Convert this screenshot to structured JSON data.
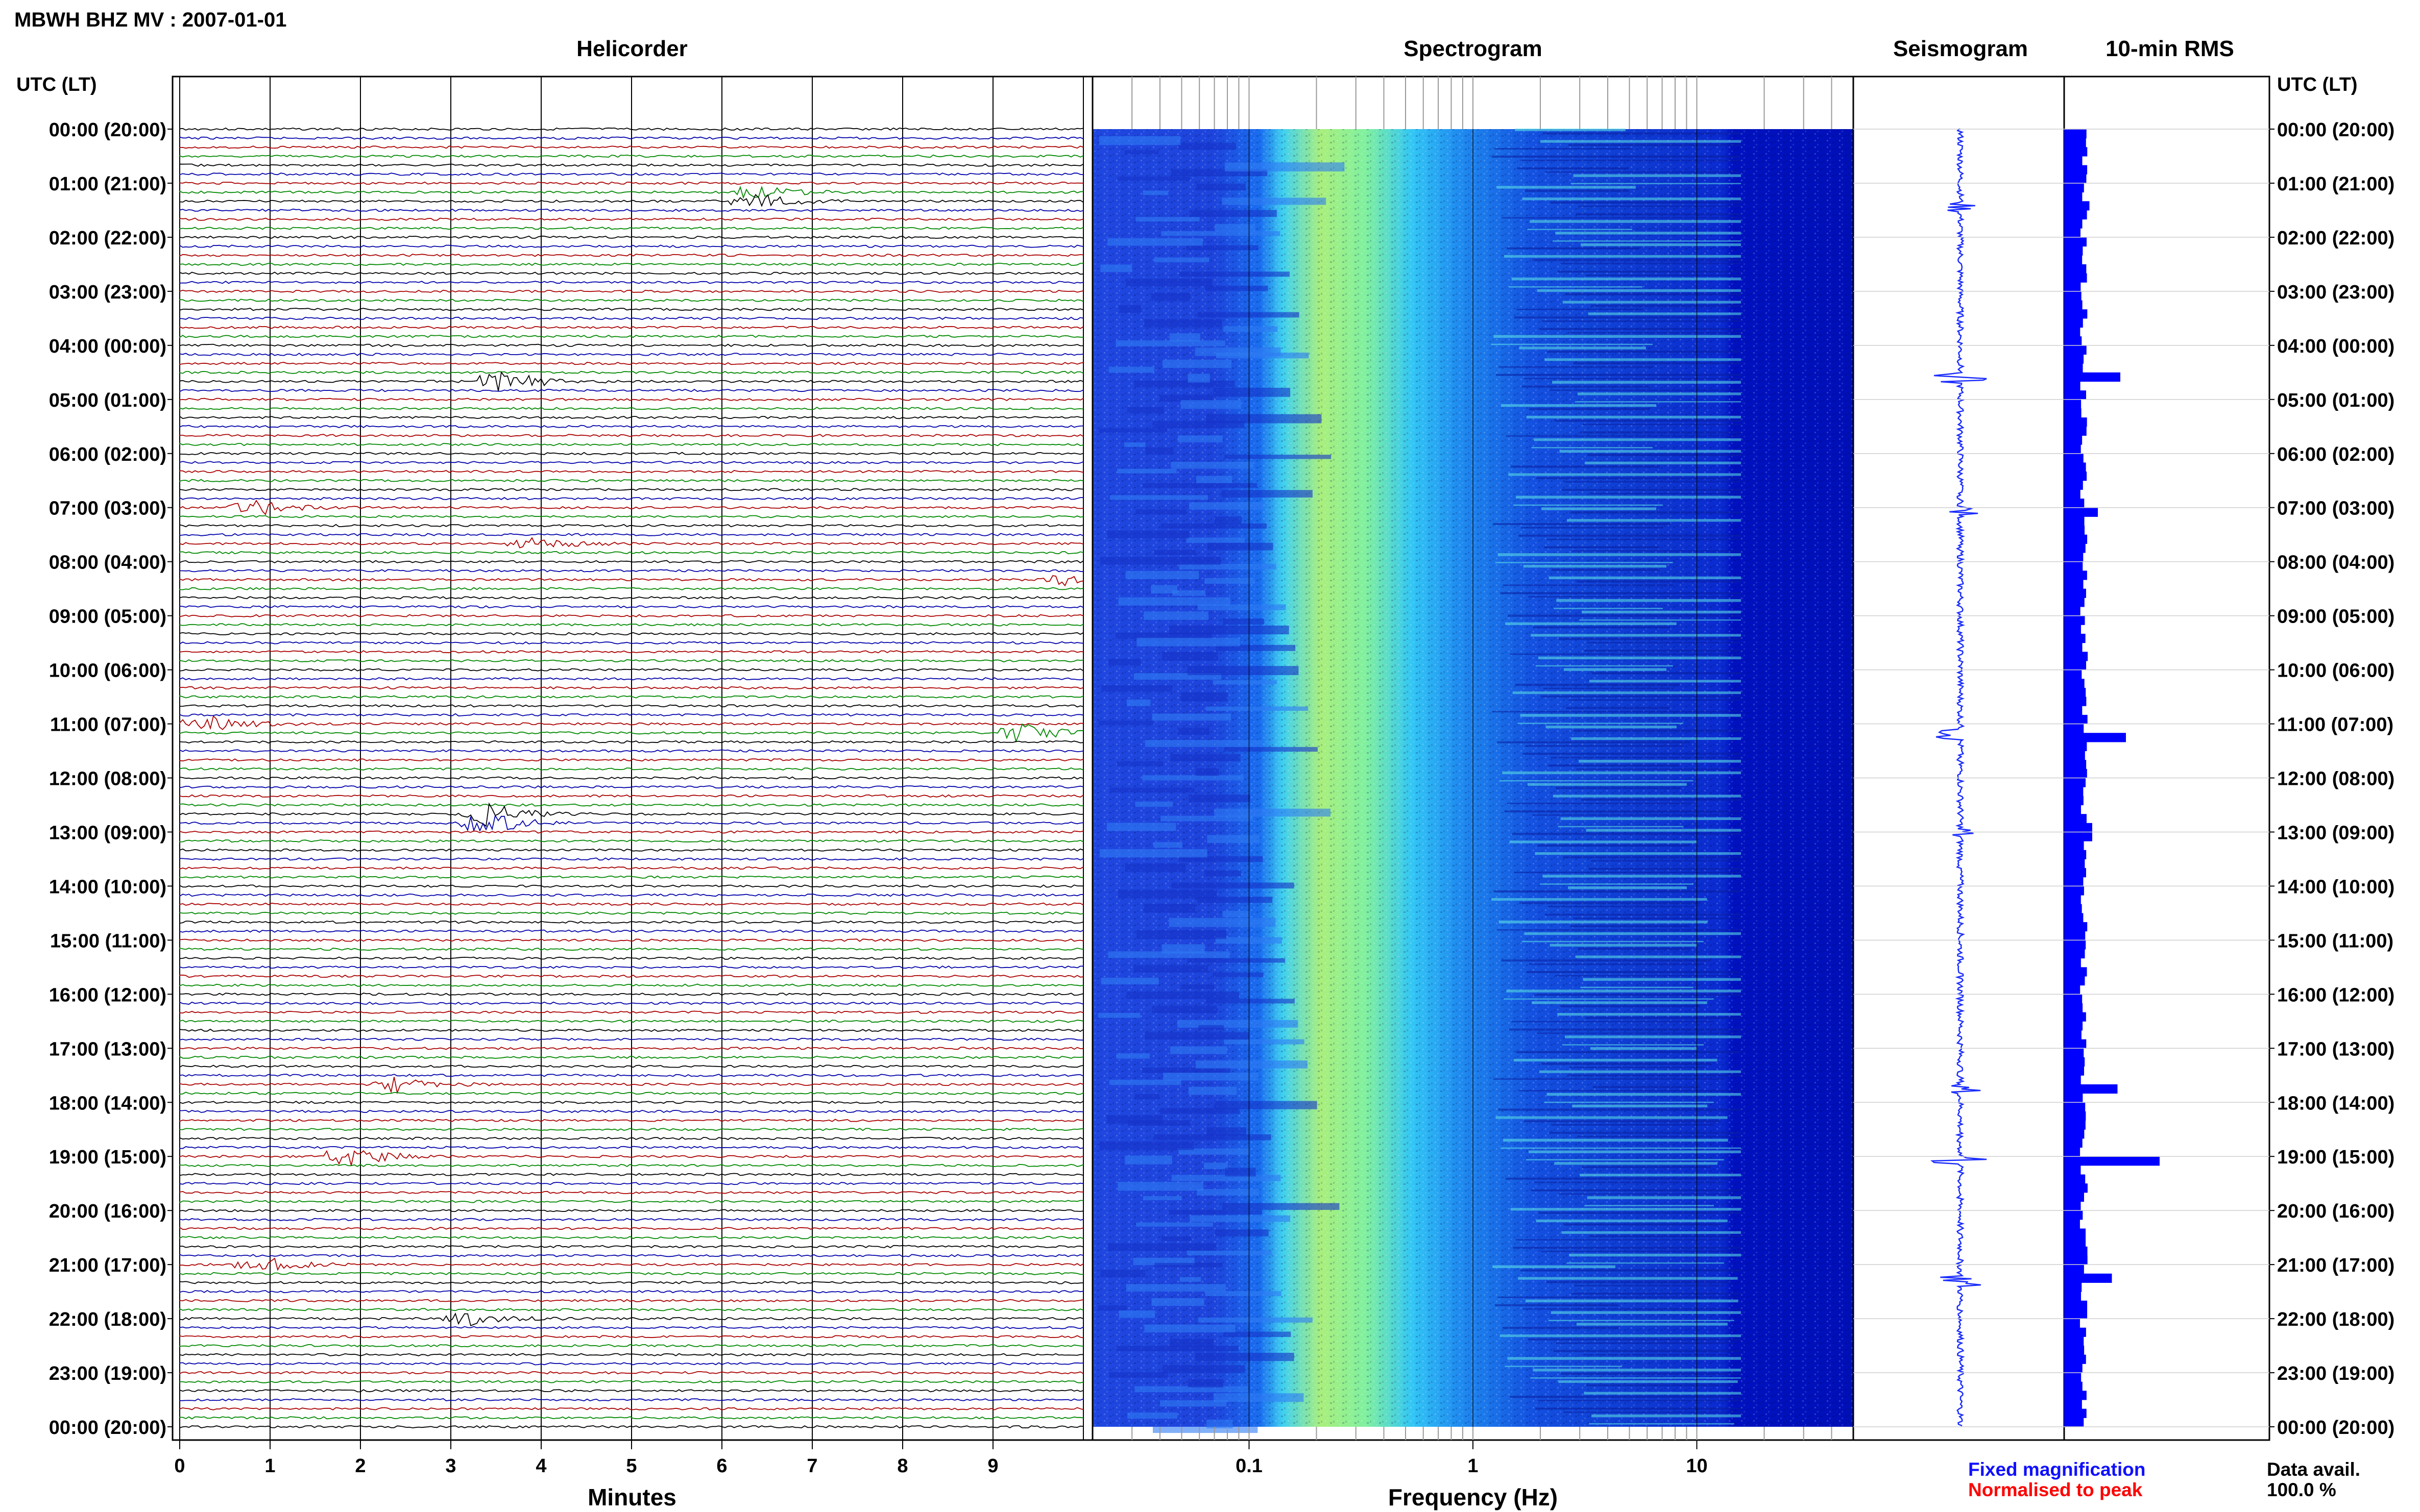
{
  "title": "MBWH BHZ MV : 2007-01-01",
  "panels": {
    "helicorder": "Helicorder",
    "spectrogram": "Spectrogram",
    "seismogram": "Seismogram",
    "rms": "10-min RMS"
  },
  "axis": {
    "time_header": "UTC (LT)",
    "minutes_label": "Minutes",
    "frequency_label": "Frequency (Hz)",
    "minute_ticks": [
      "0",
      "1",
      "2",
      "3",
      "4",
      "5",
      "6",
      "7",
      "8",
      "9"
    ],
    "frequency_ticks": [
      "0.1",
      "1",
      "10"
    ]
  },
  "time_labels": [
    "00:00 (20:00)",
    "01:00 (21:00)",
    "02:00 (22:00)",
    "03:00 (23:00)",
    "04:00 (00:00)",
    "05:00 (01:00)",
    "06:00 (02:00)",
    "07:00 (03:00)",
    "08:00 (04:00)",
    "09:00 (05:00)",
    "10:00 (06:00)",
    "11:00 (07:00)",
    "12:00 (08:00)",
    "13:00 (09:00)",
    "14:00 (10:00)",
    "15:00 (11:00)",
    "16:00 (12:00)",
    "17:00 (13:00)",
    "18:00 (14:00)",
    "19:00 (15:00)",
    "20:00 (16:00)",
    "21:00 (17:00)",
    "22:00 (18:00)",
    "23:00 (19:00)",
    "00:00 (20:00)"
  ],
  "legend": {
    "fixed": "Fixed magnification",
    "normalised": "Normalised to peak",
    "fixed_color": "#1010ff",
    "normalised_color": "#ff0000"
  },
  "data_avail": {
    "label": "Data avail.",
    "value": "100.0 %"
  },
  "colors": {
    "trace_cycle": [
      "#000000",
      "#0000aa",
      "#aa0000",
      "#008800"
    ],
    "rms_bar": "#0000ff",
    "seismogram": "#1a2cff"
  },
  "chart_data": {
    "type": "heatmap",
    "helicorder": {
      "x_minutes": [
        0,
        10
      ],
      "lines_per_hour": 6,
      "events": [
        {
          "hour": 1.25,
          "minute": 6.4,
          "amp": 0.8
        },
        {
          "hour": 4.65,
          "minute": 3.6,
          "amp": 1.2
        },
        {
          "hour": 6.95,
          "minute": 0.8,
          "amp": 1.0
        },
        {
          "hour": 7.6,
          "minute": 3.9,
          "amp": 0.8
        },
        {
          "hour": 8.3,
          "minute": 9.8,
          "amp": 0.7
        },
        {
          "hour": 11.05,
          "minute": 0.3,
          "amp": 1.0
        },
        {
          "hour": 11.1,
          "minute": 9.3,
          "amp": 1.2
        },
        {
          "hour": 12.75,
          "minute": 3.4,
          "amp": 1.3
        },
        {
          "hour": 17.6,
          "minute": 2.4,
          "amp": 0.9
        },
        {
          "hour": 18.95,
          "minute": 1.9,
          "amp": 1.1
        },
        {
          "hour": 20.95,
          "minute": 0.9,
          "amp": 0.9
        },
        {
          "hour": 21.95,
          "minute": 3.2,
          "amp": 0.7
        }
      ]
    },
    "spectrogram": {
      "freq_range_hz": [
        0.02,
        50
      ],
      "scale": "log"
    },
    "rms": {
      "interval_minutes": 10,
      "spikes": [
        {
          "hour": 1.45,
          "value": 0.45
        },
        {
          "hour": 4.6,
          "value": 1.0
        },
        {
          "hour": 7.05,
          "value": 0.6
        },
        {
          "hour": 11.2,
          "value": 1.1
        },
        {
          "hour": 13.0,
          "value": 0.5
        },
        {
          "hour": 17.75,
          "value": 0.95
        },
        {
          "hour": 19.05,
          "value": 1.7
        },
        {
          "hour": 21.3,
          "value": 0.85
        }
      ]
    }
  }
}
